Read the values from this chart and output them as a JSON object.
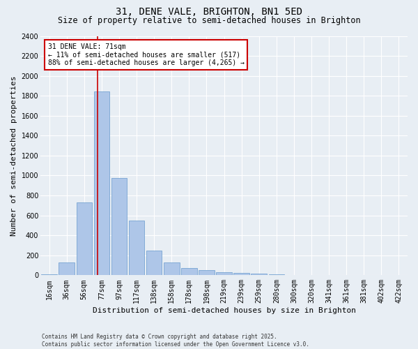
{
  "title": "31, DENE VALE, BRIGHTON, BN1 5ED",
  "subtitle": "Size of property relative to semi-detached houses in Brighton",
  "xlabel": "Distribution of semi-detached houses by size in Brighton",
  "ylabel": "Number of semi-detached properties",
  "footer_line1": "Contains HM Land Registry data © Crown copyright and database right 2025.",
  "footer_line2": "Contains public sector information licensed under the Open Government Licence v3.0.",
  "bin_labels": [
    "16sqm",
    "36sqm",
    "56sqm",
    "77sqm",
    "97sqm",
    "117sqm",
    "138sqm",
    "158sqm",
    "178sqm",
    "198sqm",
    "219sqm",
    "239sqm",
    "259sqm",
    "280sqm",
    "300sqm",
    "320sqm",
    "341sqm",
    "361sqm",
    "381sqm",
    "402sqm",
    "422sqm"
  ],
  "bar_values": [
    10,
    130,
    730,
    1840,
    975,
    545,
    250,
    130,
    70,
    50,
    30,
    22,
    15,
    8,
    5,
    3,
    2,
    1,
    1,
    0,
    0
  ],
  "bar_color": "#aec6e8",
  "bar_edge_color": "#6699cc",
  "annotation_text": "31 DENE VALE: 71sqm\n← 11% of semi-detached houses are smaller (517)\n88% of semi-detached houses are larger (4,265) →",
  "vline_x_index": 2.78,
  "vline_color": "#cc0000",
  "annotation_box_edge_color": "#cc0000",
  "ylim": [
    0,
    2400
  ],
  "yticks": [
    0,
    200,
    400,
    600,
    800,
    1000,
    1200,
    1400,
    1600,
    1800,
    2000,
    2200,
    2400
  ],
  "background_color": "#e8eef4",
  "plot_background": "#e8eef4",
  "grid_color": "#ffffff",
  "title_fontsize": 10,
  "subtitle_fontsize": 8.5,
  "label_fontsize": 8,
  "tick_fontsize": 7,
  "annotation_fontsize": 7,
  "footer_fontsize": 5.5
}
